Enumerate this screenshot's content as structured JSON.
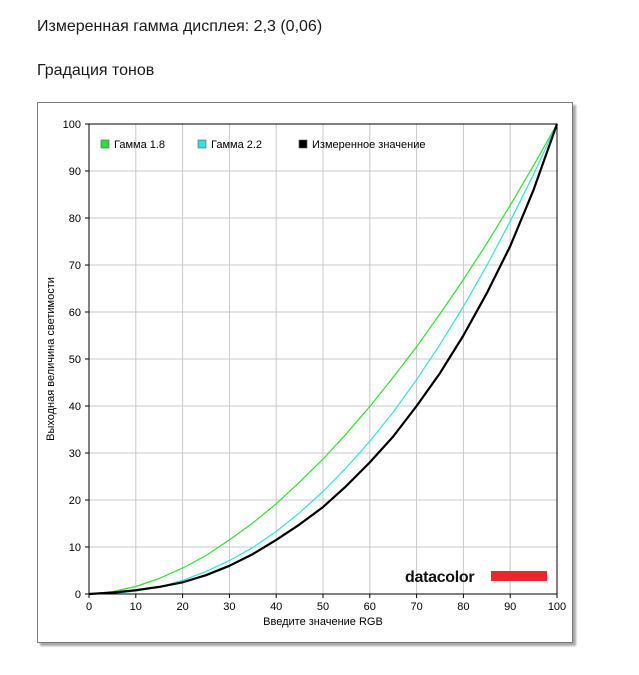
{
  "header": {
    "measured_gamma": "Измеренная гамма дисплея: 2,3 (0,06)",
    "section_title": "Градация тонов"
  },
  "brand": {
    "logo_text": "datacolor",
    "accent": "#e8262c"
  },
  "colors": {
    "gamma18": "#33dd33",
    "gamma22": "#33e0e0",
    "measured": "#000000",
    "grid": "#c8c8c8"
  },
  "chart_data": {
    "type": "line",
    "xlabel": "Введите значение RGB",
    "ylabel": "Выходная величина светимости",
    "xlim": [
      0,
      100
    ],
    "ylim": [
      0,
      100
    ],
    "xticks": [
      0,
      10,
      20,
      30,
      40,
      50,
      60,
      70,
      80,
      90,
      100
    ],
    "yticks": [
      0,
      10,
      20,
      30,
      40,
      50,
      60,
      70,
      80,
      90,
      100
    ],
    "grid": true,
    "legend_position": "top-left",
    "x": [
      0,
      5,
      10,
      15,
      20,
      25,
      30,
      35,
      40,
      45,
      50,
      55,
      60,
      65,
      70,
      75,
      80,
      85,
      90,
      95,
      100
    ],
    "series": [
      {
        "name": "Гамма 1.8",
        "color": "#33dd33",
        "values": [
          0,
          0.5,
          1.6,
          3.3,
          5.5,
          8.2,
          11.5,
          15.1,
          19.2,
          23.8,
          28.7,
          34.1,
          39.9,
          46.1,
          52.6,
          59.6,
          66.9,
          74.6,
          82.7,
          91.2,
          100
        ]
      },
      {
        "name": "Гамма 2.2",
        "color": "#33e0e0",
        "values": [
          0,
          0.1,
          0.6,
          1.5,
          2.9,
          4.8,
          7.1,
          9.9,
          13.3,
          17.3,
          21.8,
          26.9,
          32.5,
          38.7,
          45.6,
          53.1,
          61.2,
          69.9,
          79.3,
          89.3,
          100
        ]
      },
      {
        "name": "Измеренное значение",
        "color": "#000000",
        "values": [
          0,
          0.3,
          0.8,
          1.5,
          2.5,
          4.0,
          6.0,
          8.5,
          11.5,
          14.8,
          18.5,
          23.0,
          28.0,
          33.5,
          40.0,
          47.0,
          55.0,
          64.0,
          74.0,
          86.0,
          100
        ]
      }
    ]
  }
}
